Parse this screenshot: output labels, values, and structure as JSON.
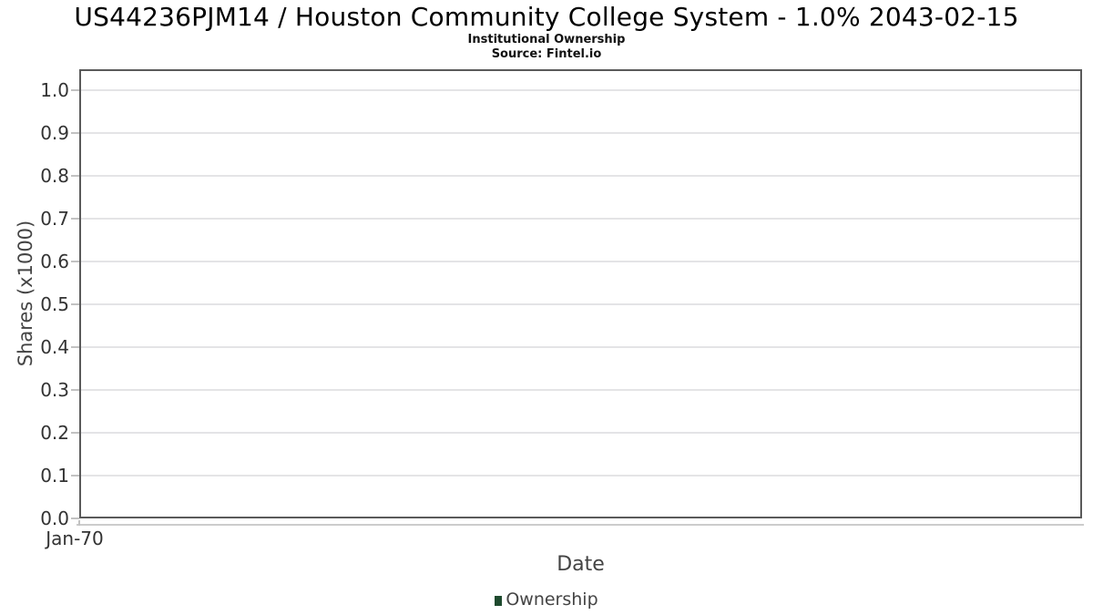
{
  "chart_data": {
    "type": "line",
    "title": "US44236PJM14 / Houston Community College System - 1.0% 2043-02-15",
    "subtitle": "Institutional Ownership",
    "source": "Source: Fintel.io",
    "xlabel": "Date",
    "ylabel": "Shares (x1000)",
    "ylim": [
      0.0,
      1.0
    ],
    "y_tick_labels": [
      "0.0",
      "0.1",
      "0.2",
      "0.3",
      "0.4",
      "0.5",
      "0.6",
      "0.7",
      "0.8",
      "0.9",
      "1.0"
    ],
    "x_tick_labels": [
      "Jan-70"
    ],
    "grid": "horizontal",
    "legend_position": "bottom-center",
    "series": [
      {
        "name": "Ownership",
        "color": "#1e4a2e",
        "points": []
      }
    ]
  }
}
